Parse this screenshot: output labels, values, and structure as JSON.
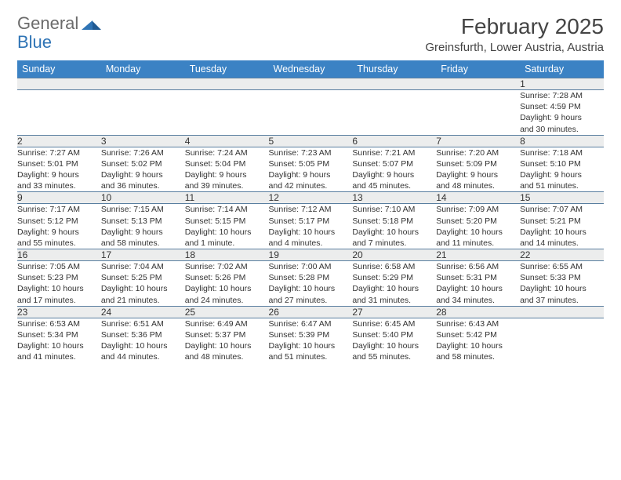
{
  "brand": {
    "part1": "General",
    "part2": "Blue"
  },
  "title": "February 2025",
  "location": "Greinsfurth, Lower Austria, Austria",
  "colors": {
    "header_bg": "#3b82c4",
    "header_text": "#ffffff",
    "daynum_bg": "#eceded",
    "border": "#5a7fa0",
    "brand_gray": "#6b6b6b",
    "brand_blue": "#2f74b5"
  },
  "dayHeaders": [
    "Sunday",
    "Monday",
    "Tuesday",
    "Wednesday",
    "Thursday",
    "Friday",
    "Saturday"
  ],
  "weeks": [
    {
      "nums": [
        "",
        "",
        "",
        "",
        "",
        "",
        "1"
      ],
      "cells": [
        null,
        null,
        null,
        null,
        null,
        null,
        {
          "sunrise": "Sunrise: 7:28 AM",
          "sunset": "Sunset: 4:59 PM",
          "d1": "Daylight: 9 hours",
          "d2": "and 30 minutes."
        }
      ]
    },
    {
      "nums": [
        "2",
        "3",
        "4",
        "5",
        "6",
        "7",
        "8"
      ],
      "cells": [
        {
          "sunrise": "Sunrise: 7:27 AM",
          "sunset": "Sunset: 5:01 PM",
          "d1": "Daylight: 9 hours",
          "d2": "and 33 minutes."
        },
        {
          "sunrise": "Sunrise: 7:26 AM",
          "sunset": "Sunset: 5:02 PM",
          "d1": "Daylight: 9 hours",
          "d2": "and 36 minutes."
        },
        {
          "sunrise": "Sunrise: 7:24 AM",
          "sunset": "Sunset: 5:04 PM",
          "d1": "Daylight: 9 hours",
          "d2": "and 39 minutes."
        },
        {
          "sunrise": "Sunrise: 7:23 AM",
          "sunset": "Sunset: 5:05 PM",
          "d1": "Daylight: 9 hours",
          "d2": "and 42 minutes."
        },
        {
          "sunrise": "Sunrise: 7:21 AM",
          "sunset": "Sunset: 5:07 PM",
          "d1": "Daylight: 9 hours",
          "d2": "and 45 minutes."
        },
        {
          "sunrise": "Sunrise: 7:20 AM",
          "sunset": "Sunset: 5:09 PM",
          "d1": "Daylight: 9 hours",
          "d2": "and 48 minutes."
        },
        {
          "sunrise": "Sunrise: 7:18 AM",
          "sunset": "Sunset: 5:10 PM",
          "d1": "Daylight: 9 hours",
          "d2": "and 51 minutes."
        }
      ]
    },
    {
      "nums": [
        "9",
        "10",
        "11",
        "12",
        "13",
        "14",
        "15"
      ],
      "cells": [
        {
          "sunrise": "Sunrise: 7:17 AM",
          "sunset": "Sunset: 5:12 PM",
          "d1": "Daylight: 9 hours",
          "d2": "and 55 minutes."
        },
        {
          "sunrise": "Sunrise: 7:15 AM",
          "sunset": "Sunset: 5:13 PM",
          "d1": "Daylight: 9 hours",
          "d2": "and 58 minutes."
        },
        {
          "sunrise": "Sunrise: 7:14 AM",
          "sunset": "Sunset: 5:15 PM",
          "d1": "Daylight: 10 hours",
          "d2": "and 1 minute."
        },
        {
          "sunrise": "Sunrise: 7:12 AM",
          "sunset": "Sunset: 5:17 PM",
          "d1": "Daylight: 10 hours",
          "d2": "and 4 minutes."
        },
        {
          "sunrise": "Sunrise: 7:10 AM",
          "sunset": "Sunset: 5:18 PM",
          "d1": "Daylight: 10 hours",
          "d2": "and 7 minutes."
        },
        {
          "sunrise": "Sunrise: 7:09 AM",
          "sunset": "Sunset: 5:20 PM",
          "d1": "Daylight: 10 hours",
          "d2": "and 11 minutes."
        },
        {
          "sunrise": "Sunrise: 7:07 AM",
          "sunset": "Sunset: 5:21 PM",
          "d1": "Daylight: 10 hours",
          "d2": "and 14 minutes."
        }
      ]
    },
    {
      "nums": [
        "16",
        "17",
        "18",
        "19",
        "20",
        "21",
        "22"
      ],
      "cells": [
        {
          "sunrise": "Sunrise: 7:05 AM",
          "sunset": "Sunset: 5:23 PM",
          "d1": "Daylight: 10 hours",
          "d2": "and 17 minutes."
        },
        {
          "sunrise": "Sunrise: 7:04 AM",
          "sunset": "Sunset: 5:25 PM",
          "d1": "Daylight: 10 hours",
          "d2": "and 21 minutes."
        },
        {
          "sunrise": "Sunrise: 7:02 AM",
          "sunset": "Sunset: 5:26 PM",
          "d1": "Daylight: 10 hours",
          "d2": "and 24 minutes."
        },
        {
          "sunrise": "Sunrise: 7:00 AM",
          "sunset": "Sunset: 5:28 PM",
          "d1": "Daylight: 10 hours",
          "d2": "and 27 minutes."
        },
        {
          "sunrise": "Sunrise: 6:58 AM",
          "sunset": "Sunset: 5:29 PM",
          "d1": "Daylight: 10 hours",
          "d2": "and 31 minutes."
        },
        {
          "sunrise": "Sunrise: 6:56 AM",
          "sunset": "Sunset: 5:31 PM",
          "d1": "Daylight: 10 hours",
          "d2": "and 34 minutes."
        },
        {
          "sunrise": "Sunrise: 6:55 AM",
          "sunset": "Sunset: 5:33 PM",
          "d1": "Daylight: 10 hours",
          "d2": "and 37 minutes."
        }
      ]
    },
    {
      "nums": [
        "23",
        "24",
        "25",
        "26",
        "27",
        "28",
        ""
      ],
      "cells": [
        {
          "sunrise": "Sunrise: 6:53 AM",
          "sunset": "Sunset: 5:34 PM",
          "d1": "Daylight: 10 hours",
          "d2": "and 41 minutes."
        },
        {
          "sunrise": "Sunrise: 6:51 AM",
          "sunset": "Sunset: 5:36 PM",
          "d1": "Daylight: 10 hours",
          "d2": "and 44 minutes."
        },
        {
          "sunrise": "Sunrise: 6:49 AM",
          "sunset": "Sunset: 5:37 PM",
          "d1": "Daylight: 10 hours",
          "d2": "and 48 minutes."
        },
        {
          "sunrise": "Sunrise: 6:47 AM",
          "sunset": "Sunset: 5:39 PM",
          "d1": "Daylight: 10 hours",
          "d2": "and 51 minutes."
        },
        {
          "sunrise": "Sunrise: 6:45 AM",
          "sunset": "Sunset: 5:40 PM",
          "d1": "Daylight: 10 hours",
          "d2": "and 55 minutes."
        },
        {
          "sunrise": "Sunrise: 6:43 AM",
          "sunset": "Sunset: 5:42 PM",
          "d1": "Daylight: 10 hours",
          "d2": "and 58 minutes."
        },
        null
      ]
    }
  ]
}
